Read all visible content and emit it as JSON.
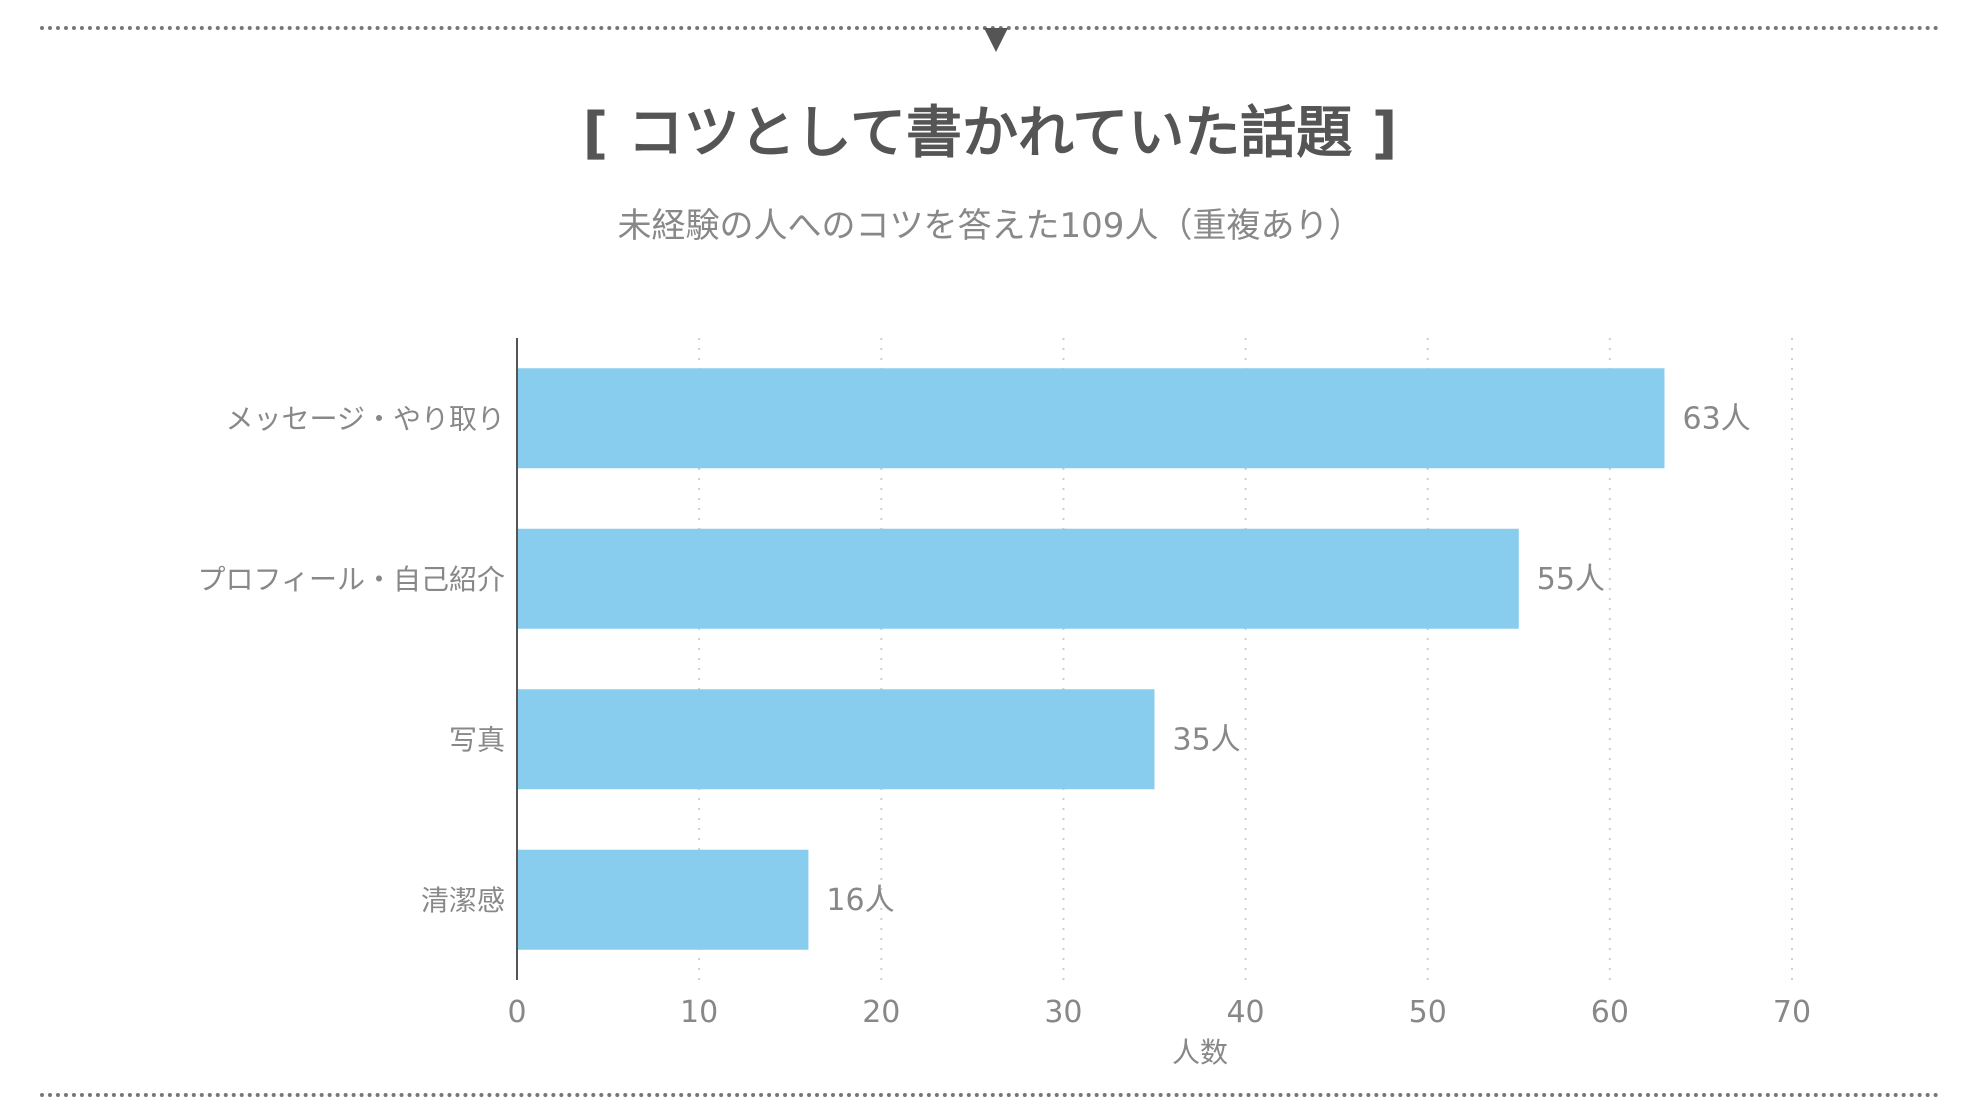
{
  "header": {
    "title": "[ コツとして書かれていた話題 ]",
    "subtitle": "未経験の人へのコツを答えた109人（重複あり）"
  },
  "colors": {
    "bar": "#89CDEE",
    "text": "#555555",
    "muted": "#888888",
    "grid": "#cfcfcf",
    "axis": "#555555"
  },
  "chart_data": {
    "type": "bar",
    "orientation": "horizontal",
    "categories": [
      "メッセージ・やり取り",
      "プロフィール・自己紹介",
      "写真",
      "清潔感"
    ],
    "values": [
      63,
      55,
      35,
      16
    ],
    "value_labels": [
      "63人",
      "55人",
      "35人",
      "16人"
    ],
    "xlabel": "人数",
    "xlim": [
      0,
      70
    ],
    "xticks": [
      "0",
      "10",
      "20",
      "30",
      "40",
      "50",
      "60",
      "70"
    ],
    "grid": true
  }
}
